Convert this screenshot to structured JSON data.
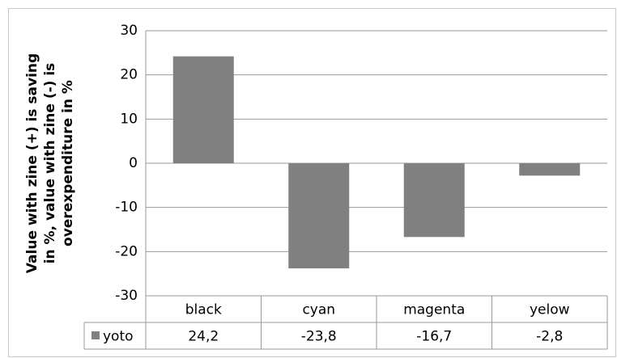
{
  "chart_data": {
    "type": "bar",
    "ylabel": [
      "Value with zine (+) is  saving",
      "in %, value with zine (-) is",
      "overexpenditure in %"
    ],
    "categories": [
      "black",
      "cyan",
      "magenta",
      "yelow"
    ],
    "series": [
      {
        "name": "yoto",
        "color": "#808080",
        "values": [
          24.2,
          -23.8,
          -16.7,
          -2.8
        ],
        "value_labels": [
          "24,2",
          "-23,8",
          "-16,7",
          "-2,8"
        ]
      }
    ],
    "ylim": [
      -30,
      30
    ],
    "yticks": [
      30,
      20,
      10,
      0,
      -10,
      -20,
      -30
    ],
    "grid": true
  }
}
